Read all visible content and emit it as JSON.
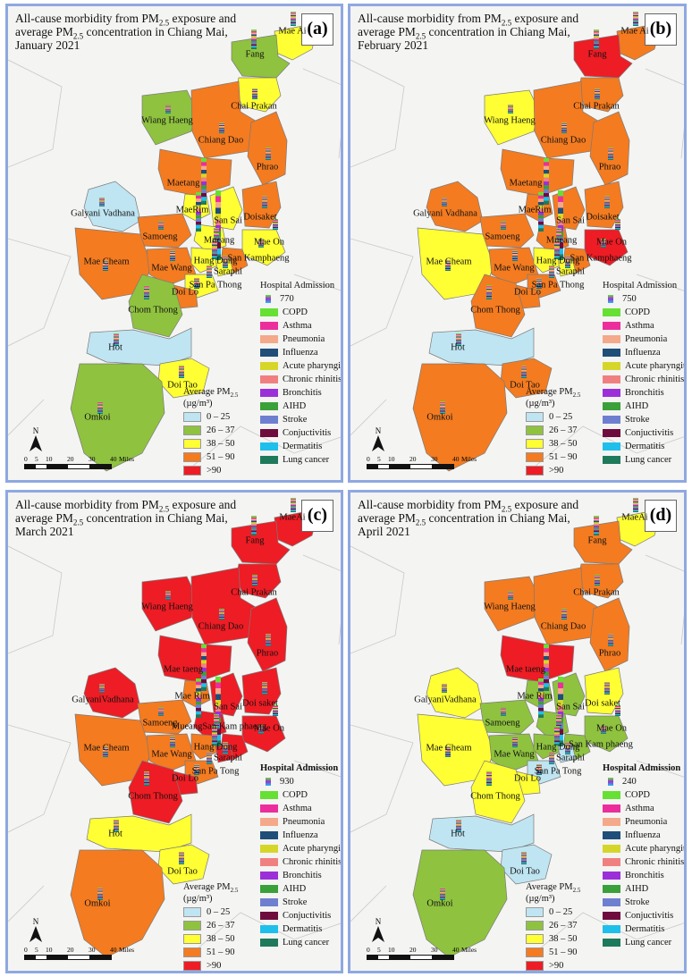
{
  "colors": {
    "pm_0_25": "#bfe5f2",
    "pm_26_37": "#8fc23f",
    "pm_38_50": "#ffff33",
    "pm_51_90": "#f47b20",
    "pm_gt90": "#ee1c24"
  },
  "legend": {
    "hospital_title": "Hospital Admission",
    "pm_title": "Average PM",
    "pm_sub": "2.5",
    "pm_unit": "(µg/m³)",
    "pm_classes": [
      "0 – 25",
      "26 – 37",
      "38 – 50",
      "51 – 90",
      ">90"
    ],
    "diseases": [
      {
        "name": "COPD",
        "color": "#66e033"
      },
      {
        "name": "Asthma",
        "color": "#ec2e9c"
      },
      {
        "name": "Pneumonia",
        "color": "#f4a98a"
      },
      {
        "name": "Influenza",
        "color": "#1f4e79"
      },
      {
        "name": "Acute pharyngitis",
        "color": "#d6d62a"
      },
      {
        "name": "Chronic rhinitis",
        "color": "#f08080"
      },
      {
        "name": "Bronchitis",
        "color": "#9b30d9"
      },
      {
        "name": "AIHD",
        "color": "#3aa03a"
      },
      {
        "name": "Stroke",
        "color": "#6f7fd0"
      },
      {
        "name": "Conjuctivitis",
        "color": "#6e0d3d"
      },
      {
        "name": "Dermatitis",
        "color": "#1fbfeb"
      },
      {
        "name": "Lung cancer",
        "color": "#1f7a5c"
      }
    ]
  },
  "scale": {
    "ticks": [
      "0",
      "5",
      "10",
      "20",
      "30",
      "40"
    ],
    "unit": "Miles"
  },
  "north": "N",
  "panels": [
    {
      "label": "(a)",
      "title_a": "All-cause morbidity from PM",
      "title_b": " exposure and",
      "title_c": "average PM",
      "title_d": " concentration in Chiang Mai,",
      "title_e": "January 2021",
      "hospital_value": "770",
      "districts": {
        "Mae Ai": "Mae Ai",
        "Fang": "Fang",
        "Chai Prakan": "Chai Prakan",
        "Wiang Haeng": "Wiang Haeng",
        "Chiang Dao": "Chiang Dao",
        "Phrao": "Phrao",
        "Maetang": "Maetang",
        "Galyani": "Galyani Vadhana",
        "MaeRim": "MaeRim",
        "San Sai": "San Sai",
        "Doisaket": "Doisaket",
        "Samoeng": "Samoeng",
        "Mueang": "Mueang",
        "Mae Cheam": "Mae Cheam",
        "Mae On": "Mae On",
        "San Kamphaeng": "San Kamphaeng",
        "Mae Wang": "Mae Wang",
        "Hang Dong": "Hang Dong",
        "Saraphi": "Saraphi",
        "San Pa Thong": "San Pa Thong",
        "Doi Lo": "Doi Lo",
        "Chom Thong": "Chom Thong",
        "Hot": "Hot",
        "Doi Tao": "Doi Tao",
        "Omkoi": "Omkoi"
      }
    },
    {
      "label": "(b)",
      "title_a": "All-cause morbidity from PM",
      "title_b": " exposure and",
      "title_c": "average PM",
      "title_d": " concentration in Chiang Mai,",
      "title_e": "February 2021",
      "hospital_value": "750",
      "districts": {
        "Mae Ai": "Mae Ai",
        "Fang": "Fang",
        "Chai Prakan": "Chai Prakan",
        "Wiang Haeng": "Wiang Haeng",
        "Chiang Dao": "Chiang Dao",
        "Phrao": "Phrao",
        "Maetang": "Maetang",
        "Galyani": "Galyani Vadhana",
        "MaeRim": "MaeRim",
        "San Sai": "San Sai",
        "Doisaket": "Doisaket",
        "Samoeng": "Samoeng",
        "Mueang": "Mueang",
        "Mae Cheam": "Mae Cheam",
        "Mae On": "Mae On",
        "San Kamphaeng": "San Kamphaeng",
        "Mae Wang": "Mae Wang",
        "Hang Dong": "Hang Dong",
        "Saraphi": "Saraphi",
        "San Pa Thong": "San Pa Thong",
        "Doi Lo": "Doi Lo",
        "Chom Thong": "Chom Thong",
        "Hot": "Hot",
        "Doi Tao": "Doi Tao",
        "Omkoi": "Omkoi"
      }
    },
    {
      "label": "(c)",
      "title_a": "All-cause morbidity from PM",
      "title_b": " exposure and",
      "title_c": "average PM",
      "title_d": " concentration in Chiang Mai,",
      "title_e": "March 2021",
      "hospital_value": "930",
      "districts": {
        "Mae Ai": "MaeAi",
        "Fang": "Fang",
        "Chai Prakan": "Chai Prakan",
        "Wiang Haeng": "Wiang Haeng",
        "Chiang Dao": "Chiang Dao",
        "Phrao": "Phrao",
        "Maetang": "Mae taeng",
        "Galyani": "GalyaniVadhana",
        "MaeRim": "Mae Rim",
        "San Sai": "San Sai",
        "Doisaket": "Doi saket",
        "Samoeng": "Samoeng",
        "Mueang": "MueangSan Kam phaeng",
        "Mae Cheam": "Mae Cheam",
        "Mae On": "Mae On",
        "San Kamphaeng": "",
        "Mae Wang": "Mae Wang",
        "Hang Dong": "Hang Dong",
        "Saraphi": "Saraphi",
        "San Pa Thong": "San Pa Tong",
        "Doi Lo": "Doi Lo",
        "Chom Thong": "Chom Thong",
        "Hot": "Hot",
        "Doi Tao": "Doi Tao",
        "Omkoi": "Omkoi"
      }
    },
    {
      "label": "(d)",
      "title_a": "All-cause morbidity from PM",
      "title_b": " exposure and",
      "title_c": "average PM",
      "title_d": " concentration in Chiang Mai,",
      "title_e": "April 2021",
      "hospital_value": "240",
      "districts": {
        "Mae Ai": "MaeAi",
        "Fang": "Fang",
        "Chai Prakan": "Chai Prakan",
        "Wiang Haeng": "Wiang Haeng",
        "Chiang Dao": "Chiang Dao",
        "Phrao": "Phrao",
        "Maetang": "Mae taeng",
        "Galyani": "GalyaniVadhana",
        "MaeRim": "Mae Rim",
        "San Sai": "San Sai",
        "Doisaket": "Doi saket",
        "Samoeng": "Samoeng",
        "Mueang": "",
        "Mae Cheam": "Mae Cheam",
        "Mae On": "Mae On",
        "San Kamphaeng": "San Kam phaeng",
        "Mae Wang": "Mae Wang",
        "Hang Dong": "Hang Dong",
        "Saraphi": "Saraphi",
        "San Pa Thong": "San Pa Tong",
        "Doi Lo": "Doi Lo",
        "Chom Thong": "Chom Thong",
        "Hot": "Hot",
        "Doi Tao": "Doi Tao",
        "Omkoi": "Omkoi"
      }
    }
  ]
}
